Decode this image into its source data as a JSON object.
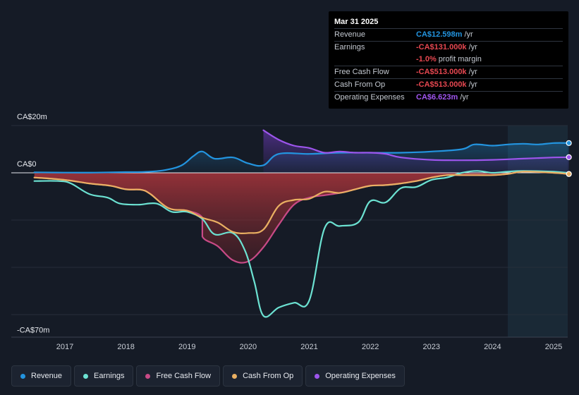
{
  "tooltip": {
    "date": "Mar 31 2025",
    "rows": [
      {
        "label": "Revenue",
        "value": "CA$12.598m",
        "suffix": "/yr",
        "color": "#2394df"
      },
      {
        "label": "Earnings",
        "value": "-CA$131.000k",
        "suffix": "/yr",
        "color": "#e64750"
      },
      {
        "label": "",
        "value": "-1.0%",
        "suffix": "profit margin",
        "color": "#e64750"
      },
      {
        "label": "Free Cash Flow",
        "value": "-CA$513.000k",
        "suffix": "/yr",
        "color": "#e64750"
      },
      {
        "label": "Cash From Op",
        "value": "-CA$513.000k",
        "suffix": "/yr",
        "color": "#e64750"
      },
      {
        "label": "Operating Expenses",
        "value": "CA$6.623m",
        "suffix": "/yr",
        "color": "#a056f0"
      }
    ]
  },
  "legend": [
    {
      "label": "Revenue",
      "color": "#2394df"
    },
    {
      "label": "Earnings",
      "color": "#6ce2d2"
    },
    {
      "label": "Free Cash Flow",
      "color": "#c84a86"
    },
    {
      "label": "Cash From Op",
      "color": "#eab062"
    },
    {
      "label": "Operating Expenses",
      "color": "#9d55ec"
    }
  ],
  "chart_data": {
    "type": "line",
    "title": "",
    "xlabel": "",
    "ylabel": "",
    "y_axis_labels": [
      {
        "text": "CA$20m",
        "value": 20
      },
      {
        "text": "CA$0",
        "value": 0
      },
      {
        "text": "-CA$70m",
        "value": -70
      }
    ],
    "ylim": [
      -70,
      20
    ],
    "xlim": [
      2016.5,
      2025.25
    ],
    "x_ticks": [
      "2017",
      "2018",
      "2019",
      "2020",
      "2021",
      "2022",
      "2023",
      "2024",
      "2025"
    ],
    "x_tick_values": [
      2017,
      2018,
      2019,
      2020,
      2021,
      2022,
      2023,
      2024,
      2025
    ],
    "forecast_start": 2024.25,
    "units": "CA$ millions",
    "series": [
      {
        "name": "Revenue",
        "color": "#2394df",
        "fill": true,
        "end_marker": true,
        "x": [
          2016.5,
          2017.0,
          2017.5,
          2018.0,
          2018.3,
          2018.6,
          2018.9,
          2019.1,
          2019.25,
          2019.45,
          2019.75,
          2020.0,
          2020.25,
          2020.5,
          2021.0,
          2021.5,
          2022.0,
          2022.5,
          2023.0,
          2023.5,
          2023.7,
          2024.0,
          2024.25,
          2024.5,
          2024.75,
          2025.0,
          2025.25
        ],
        "y": [
          0.2,
          0.1,
          0.1,
          0.3,
          0.4,
          1.0,
          3.0,
          7.0,
          9.0,
          6.0,
          6.5,
          4.0,
          3.2,
          8.0,
          8.0,
          8.5,
          8.5,
          8.5,
          9.0,
          10.0,
          12.0,
          11.5,
          12.0,
          12.3,
          12.0,
          12.6,
          12.6
        ]
      },
      {
        "name": "Operating Expenses",
        "color": "#9d55ec",
        "fill": true,
        "end_marker": true,
        "x": [
          2020.25,
          2020.5,
          2020.75,
          2021.0,
          2021.25,
          2021.5,
          2021.75,
          2022.0,
          2022.25,
          2022.5,
          2023.0,
          2023.5,
          2024.0,
          2024.5,
          2025.0,
          2025.25
        ],
        "y": [
          18.0,
          14.0,
          11.5,
          10.5,
          8.5,
          9.0,
          8.5,
          8.5,
          8.0,
          6.5,
          5.5,
          5.3,
          5.5,
          6.0,
          6.5,
          6.6
        ]
      },
      {
        "name": "Earnings",
        "color": "#6ce2d2",
        "fill": false,
        "end_marker": false,
        "x": [
          2016.5,
          2016.9,
          2017.1,
          2017.4,
          2017.7,
          2017.9,
          2018.2,
          2018.5,
          2018.75,
          2019.0,
          2019.25,
          2019.45,
          2019.75,
          2019.95,
          2020.1,
          2020.25,
          2020.5,
          2020.75,
          2021.0,
          2021.25,
          2021.5,
          2021.8,
          2022.0,
          2022.25,
          2022.5,
          2022.75,
          2023.0,
          2023.25,
          2023.5,
          2023.75,
          2024.0,
          2024.25,
          2024.5,
          2025.0,
          2025.25
        ],
        "y": [
          -3.5,
          -3.5,
          -4.5,
          -9.0,
          -10.5,
          -13.0,
          -13.5,
          -13.0,
          -16.5,
          -16.5,
          -19.5,
          -26.0,
          -25.5,
          -33.0,
          -46.0,
          -60.5,
          -57.0,
          -55.0,
          -54.0,
          -23.5,
          -22.5,
          -21.0,
          -12.0,
          -12.5,
          -6.5,
          -6.0,
          -3.0,
          -2.0,
          0.0,
          0.8,
          0.0,
          0.5,
          0.8,
          0.5,
          -0.1
        ]
      },
      {
        "name": "Free Cash Flow",
        "color": "#c84a86",
        "fill": true,
        "end_marker": true,
        "x": [
          2016.5,
          2017.0,
          2017.4,
          2017.75,
          2018.0,
          2018.25,
          2018.4,
          2018.7,
          2019.0,
          2019.25,
          2019.25,
          2019.5,
          2019.75,
          2020.0,
          2020.25,
          2020.5,
          2020.75,
          2021.0,
          2021.25,
          2021.5,
          2021.75,
          2022.0,
          2022.25,
          2022.5,
          2022.75,
          2023.0,
          2023.25,
          2023.5,
          2023.75,
          2024.0,
          2024.25,
          2024.5,
          2025.0,
          2025.25
        ],
        "y": [
          -2.0,
          -3.0,
          -4.5,
          -5.5,
          -7.0,
          -7.2,
          -9.0,
          -15.0,
          -16.0,
          -19.0,
          -27.0,
          -31.0,
          -37.0,
          -37.5,
          -31.5,
          -22.0,
          -13.5,
          -10.5,
          -9.5,
          -8.5,
          -7.0,
          -5.5,
          -5.2,
          -4.5,
          -3.5,
          -2.0,
          -1.0,
          -1.0,
          -1.0,
          -1.0,
          -0.5,
          0.5,
          0.0,
          -0.5
        ]
      },
      {
        "name": "Cash From Op",
        "color": "#eab062",
        "fill": false,
        "end_marker": true,
        "x": [
          2016.5,
          2017.0,
          2017.4,
          2017.75,
          2018.0,
          2018.25,
          2018.4,
          2018.7,
          2019.0,
          2019.25,
          2019.5,
          2019.75,
          2020.0,
          2020.25,
          2020.5,
          2020.75,
          2021.0,
          2021.25,
          2021.5,
          2021.75,
          2022.0,
          2022.25,
          2022.5,
          2022.75,
          2023.0,
          2023.25,
          2023.5,
          2023.75,
          2024.0,
          2024.25,
          2024.5,
          2025.0,
          2025.25
        ],
        "y": [
          -2.0,
          -3.0,
          -4.5,
          -5.5,
          -7.0,
          -7.2,
          -9.0,
          -15.0,
          -16.0,
          -19.0,
          -21.0,
          -25.0,
          -25.5,
          -24.0,
          -14.0,
          -11.5,
          -11.0,
          -8.0,
          -8.5,
          -7.0,
          -5.5,
          -5.2,
          -4.5,
          -3.5,
          -2.0,
          -1.0,
          -1.0,
          -1.0,
          -1.0,
          -0.5,
          0.5,
          0.0,
          -0.5
        ]
      }
    ]
  }
}
